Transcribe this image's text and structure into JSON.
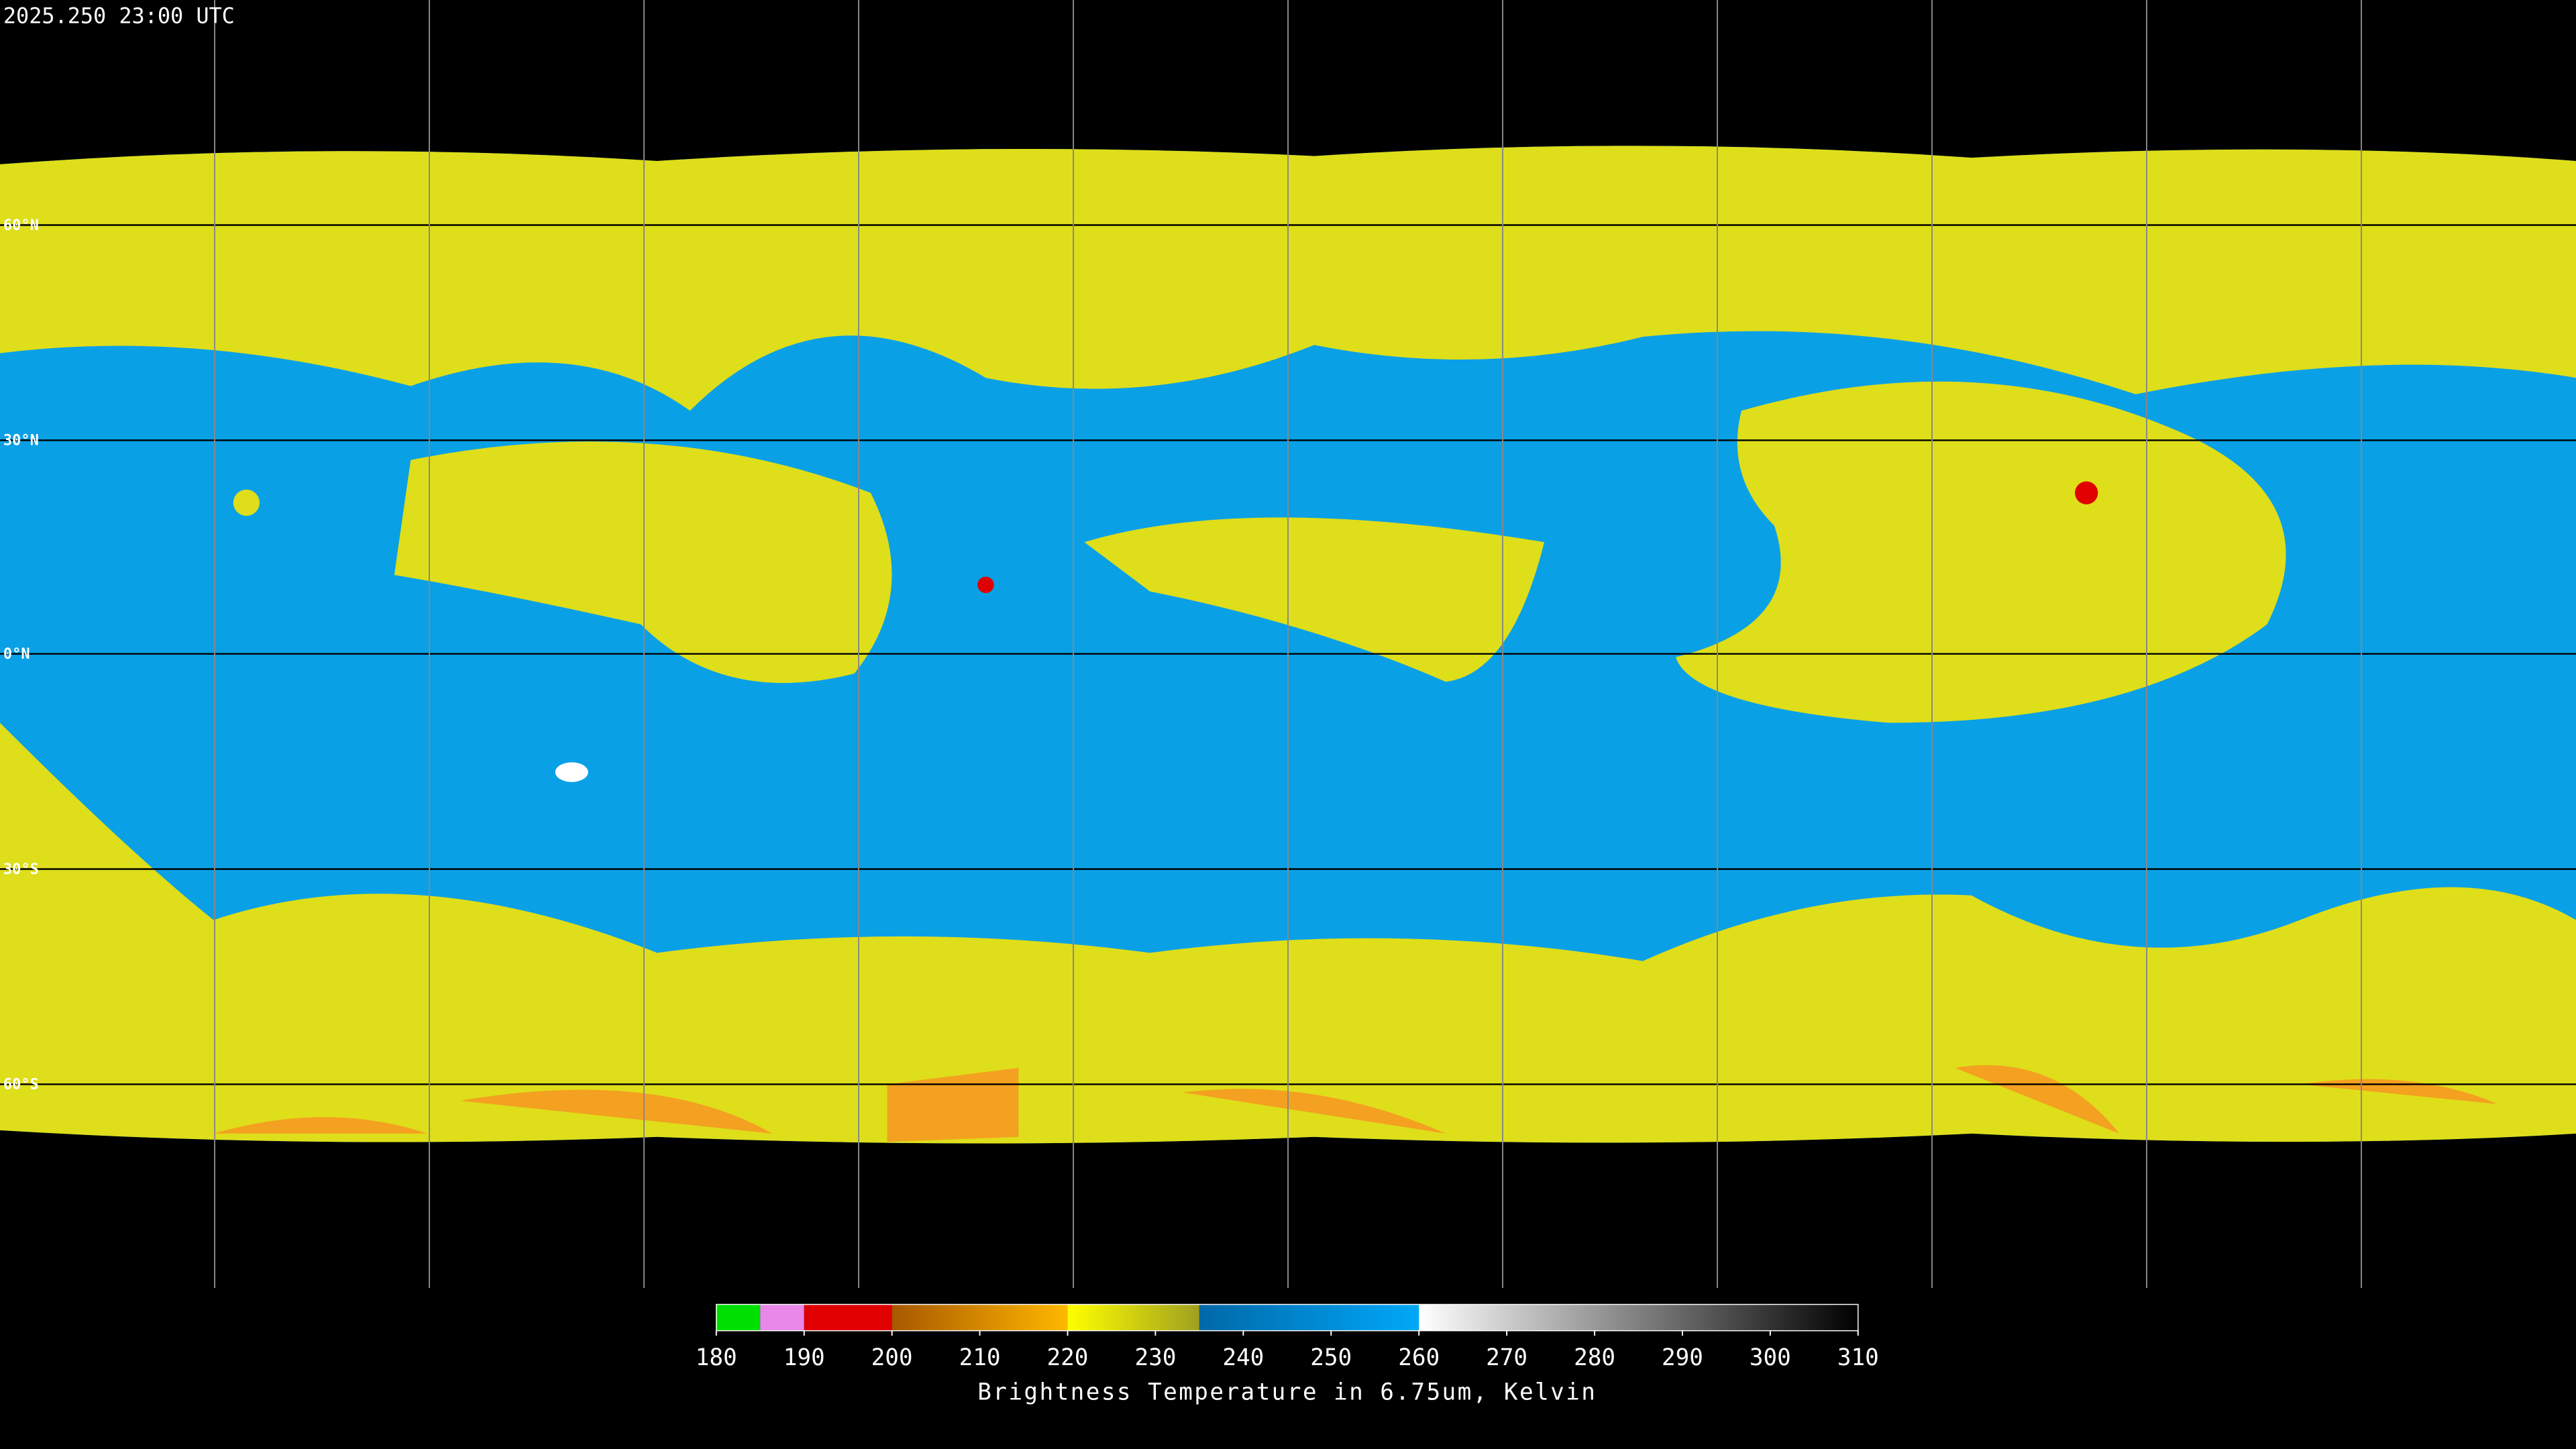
{
  "timestamp": "2025.250 23:00 UTC",
  "lat_labels": [
    "60°N",
    "30°N",
    "0°N",
    "30°S",
    "60°S"
  ],
  "colorbar": {
    "title": "Brightness Temperature in 6.75um, Kelvin",
    "lim": [
      180,
      310
    ],
    "ticks": [
      180,
      190,
      200,
      210,
      220,
      230,
      240,
      250,
      260,
      270,
      280,
      290,
      300,
      310
    ],
    "segments": [
      {
        "from": 180,
        "to": 185,
        "colors": [
          "#00e000",
          "#00e000"
        ]
      },
      {
        "from": 185,
        "to": 190,
        "colors": [
          "#e888e8",
          "#e888e8"
        ]
      },
      {
        "from": 190,
        "to": 200,
        "colors": [
          "#e00000",
          "#e00000"
        ]
      },
      {
        "from": 200,
        "to": 220,
        "colors": [
          "#a85800",
          "#ffb800"
        ]
      },
      {
        "from": 220,
        "to": 235,
        "colors": [
          "#ffff00",
          "#a0a020"
        ]
      },
      {
        "from": 235,
        "to": 260,
        "colors": [
          "#0068a8",
          "#00a8f8"
        ]
      },
      {
        "from": 260,
        "to": 310,
        "colors": [
          "#ffffff",
          "#000000"
        ]
      }
    ]
  }
}
